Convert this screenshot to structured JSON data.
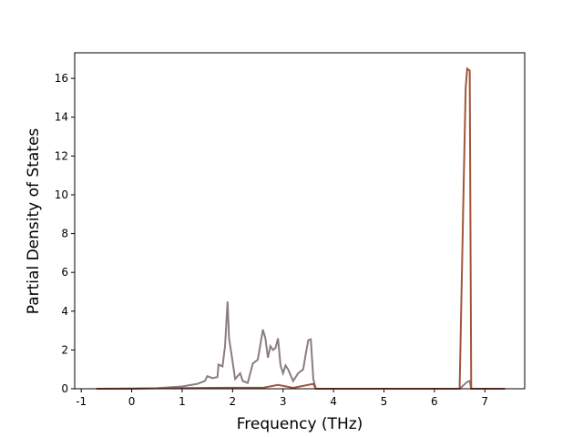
{
  "chart_data": {
    "type": "line",
    "x_label": "Frequency (THz)",
    "y_label": "Partial Density of States",
    "xlim": [
      -1.13,
      7.79
    ],
    "ylim": [
      0,
      17.32
    ],
    "xticks": [
      -1,
      0,
      1,
      2,
      3,
      4,
      5,
      6,
      7
    ],
    "yticks": [
      0,
      2,
      4,
      6,
      8,
      10,
      12,
      14,
      16
    ],
    "series": [
      {
        "color": "#8c7b86",
        "x": [
          -0.7,
          0,
          0.5,
          1,
          1.3,
          1.45,
          1.5,
          1.6,
          1.7,
          1.72,
          1.8,
          1.85,
          1.9,
          1.93,
          2.0,
          2.05,
          2.15,
          2.2,
          2.3,
          2.4,
          2.5,
          2.6,
          2.65,
          2.7,
          2.75,
          2.8,
          2.85,
          2.9,
          2.95,
          3.0,
          3.05,
          3.1,
          3.2,
          3.3,
          3.4,
          3.45,
          3.5,
          3.55,
          3.6,
          3.65,
          6.5,
          6.65,
          6.7,
          6.73,
          7.4
        ],
        "values": [
          0,
          0,
          0.03,
          0.12,
          0.25,
          0.4,
          0.65,
          0.55,
          0.6,
          1.25,
          1.15,
          2.2,
          4.5,
          2.6,
          1.4,
          0.5,
          0.8,
          0.4,
          0.3,
          1.3,
          1.5,
          3.05,
          2.6,
          1.6,
          2.2,
          2.0,
          2.1,
          2.6,
          1.2,
          0.8,
          1.2,
          1.0,
          0.4,
          0.8,
          1.0,
          1.8,
          2.5,
          2.55,
          0.5,
          0,
          0,
          0.35,
          0.4,
          0,
          0
        ]
      },
      {
        "color": "#a0553a",
        "x": [
          -0.7,
          1.9,
          2.6,
          2.9,
          3.2,
          3.5,
          3.6,
          3.65,
          6.5,
          6.58,
          6.62,
          6.65,
          6.7,
          6.73,
          7.4
        ],
        "values": [
          0,
          0.05,
          0.05,
          0.2,
          0.05,
          0.2,
          0.25,
          0,
          0,
          10.5,
          15.5,
          16.5,
          16.4,
          0,
          0
        ]
      }
    ]
  }
}
